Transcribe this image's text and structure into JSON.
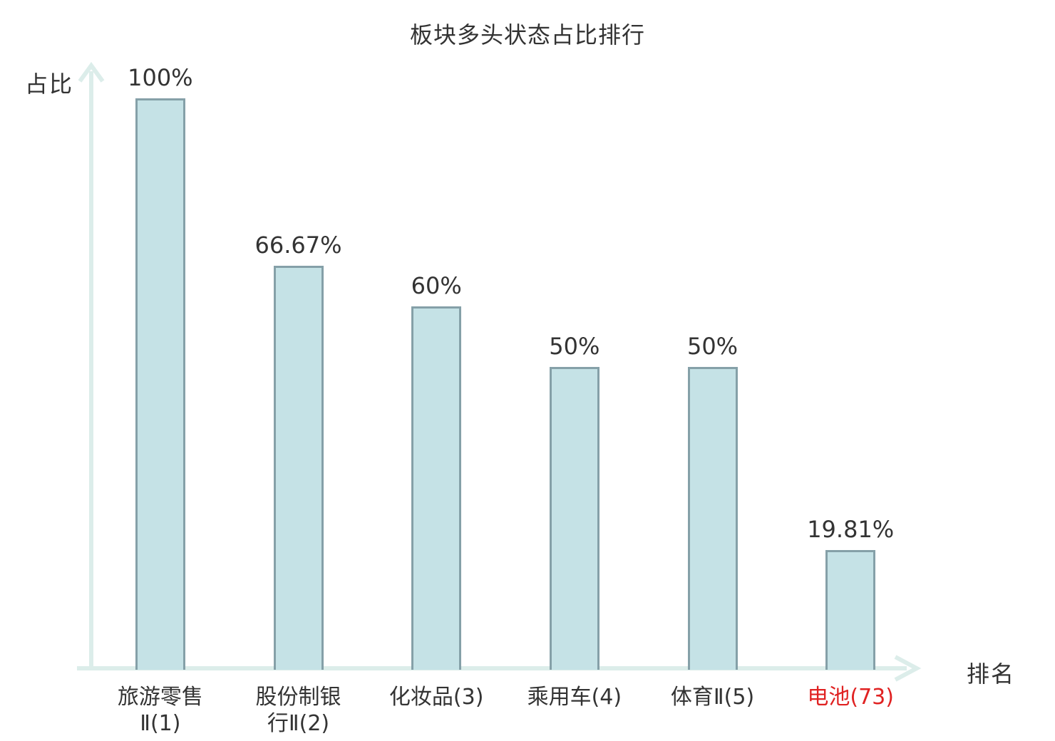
{
  "title": "板块多头状态占比排行",
  "axes": {
    "y_label": "占比",
    "x_label": "排名"
  },
  "colors": {
    "text": "#333333",
    "bar_fill": "#c5e2e6",
    "bar_border": "#85a0a8",
    "axis": "#dcedea",
    "highlight": "#e02222"
  },
  "chart_data": {
    "type": "bar",
    "title": "板块多头状态占比排行",
    "xlabel": "排名",
    "ylabel": "占比",
    "ylim": [
      0,
      100
    ],
    "grid": false,
    "legend": null,
    "categories": [
      "旅游零售Ⅱ(1)",
      "股份制银行Ⅱ(2)",
      "化妆品(3)",
      "乘用车(4)",
      "体育Ⅱ(5)",
      "电池(73)"
    ],
    "values": [
      100,
      66.67,
      60,
      50,
      50,
      19.81
    ],
    "bars": [
      {
        "category": "旅游零售Ⅱ(1)",
        "label_lines": [
          "旅游零售",
          "Ⅱ(1)"
        ],
        "value": 100,
        "value_label": "100%",
        "highlight": false
      },
      {
        "category": "股份制银行Ⅱ(2)",
        "label_lines": [
          "股份制银",
          "行Ⅱ(2)"
        ],
        "value": 66.67,
        "value_label": "66.67%",
        "highlight": false
      },
      {
        "category": "化妆品(3)",
        "label_lines": [
          "化妆品(3)"
        ],
        "value": 60,
        "value_label": "60%",
        "highlight": false
      },
      {
        "category": "乘用车(4)",
        "label_lines": [
          "乘用车(4)"
        ],
        "value": 50,
        "value_label": "50%",
        "highlight": false
      },
      {
        "category": "体育Ⅱ(5)",
        "label_lines": [
          "体育Ⅱ(5)"
        ],
        "value": 50,
        "value_label": "50%",
        "highlight": false
      },
      {
        "category": "电池(73)",
        "label_lines": [
          "电池(73)"
        ],
        "value": 19.81,
        "value_label": "19.81%",
        "highlight": true
      }
    ]
  }
}
